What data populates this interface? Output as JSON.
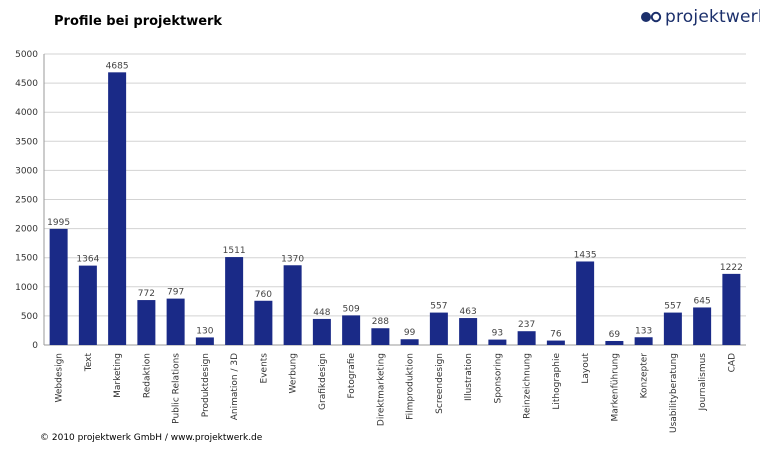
{
  "logo": {
    "text": "projektwerk"
  },
  "footer": "© 2010 projektwerk GmbH / www.projektwerk.de",
  "colors": {
    "bar": "#1a2a87",
    "grid": "#d3d3d3",
    "logo": "#1b2f6b"
  },
  "chart_data": {
    "type": "bar",
    "title": "Profile bei projektwerk",
    "xlabel": "",
    "ylabel": "",
    "ylim": [
      0,
      5000
    ],
    "yticks": [
      0,
      500,
      1000,
      1500,
      2000,
      2500,
      3000,
      3500,
      4000,
      4500,
      5000
    ],
    "grid": true,
    "categories": [
      "Webdesign",
      "Text",
      "Marketing",
      "Redaktion",
      "Public Relations",
      "Produktdesign",
      "Animation / 3D",
      "Events",
      "Werbung",
      "Grafikdesign",
      "Fotografie",
      "Direktmarketing",
      "Filmproduktion",
      "Screendesign",
      "Illustration",
      "Sponsoring",
      "Reinzeichnung",
      "Lithographie",
      "Layout",
      "Markenführung",
      "Konzepter",
      "Usabilityberatung",
      "Journalismus",
      "CAD"
    ],
    "values": [
      1995,
      1364,
      4685,
      772,
      797,
      130,
      1511,
      760,
      1370,
      448,
      509,
      288,
      99,
      557,
      463,
      93,
      237,
      76,
      1435,
      69,
      133,
      557,
      645,
      1222
    ]
  }
}
